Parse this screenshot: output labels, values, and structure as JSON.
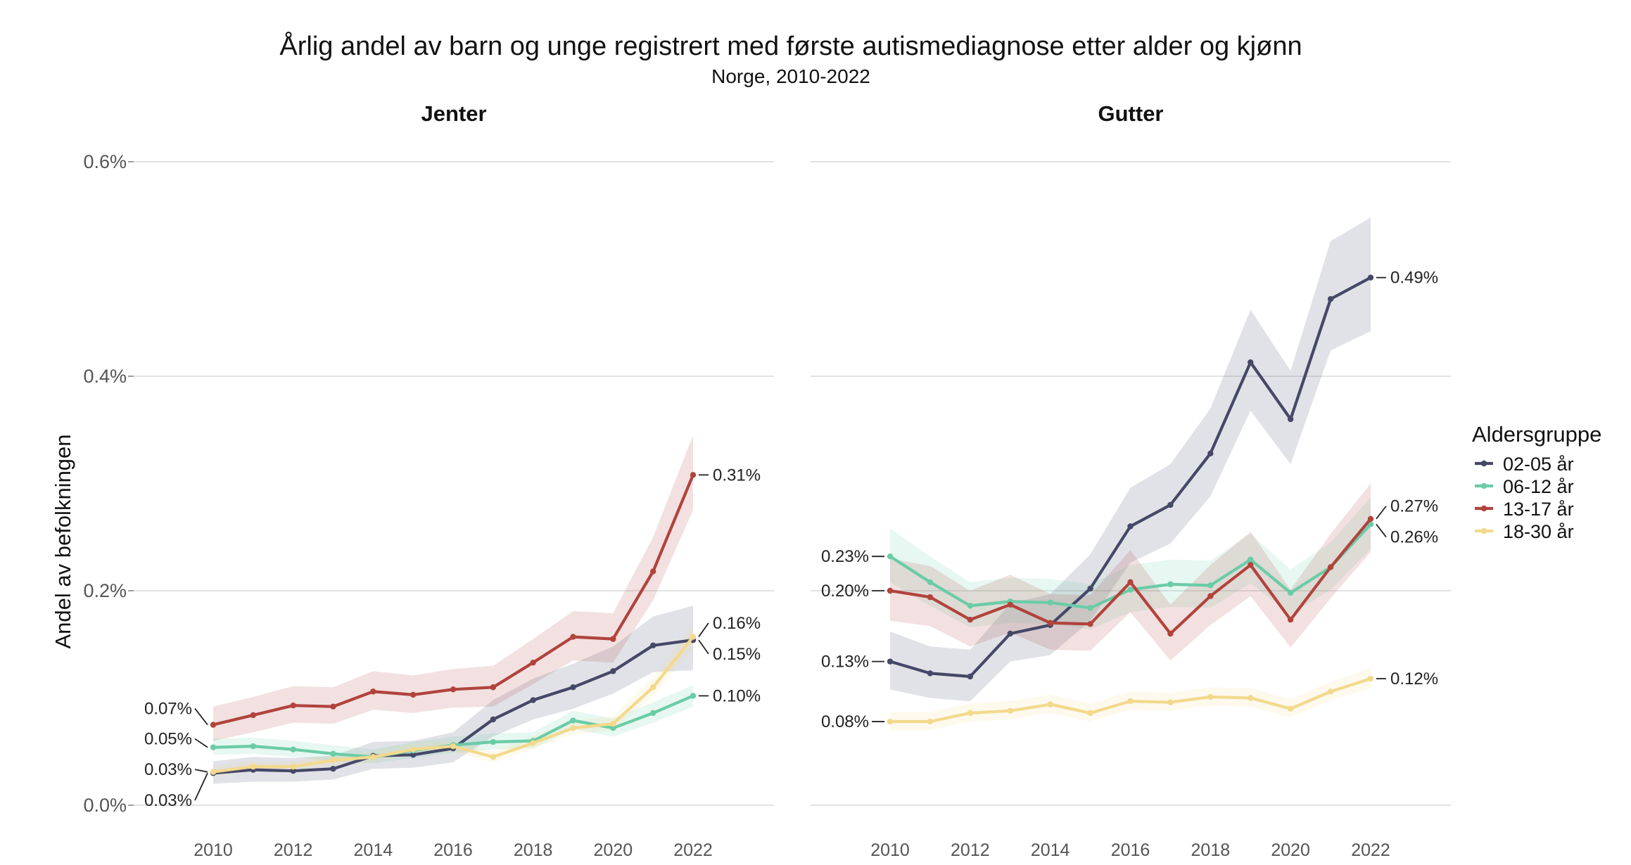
{
  "chart_data": {
    "type": "line",
    "title": "Årlig andel av barn og unge registrert med første autismediagnose etter alder og kjønn",
    "subtitle": "Norge, 2010-2022",
    "ylabel": "Andel av befolkningen",
    "ylim": [
      0,
      0.6
    ],
    "yticks": [
      0,
      0.2,
      0.4,
      0.6
    ],
    "ytick_labels": [
      "0.0%",
      "0.2%",
      "0.4%",
      "0.6%"
    ],
    "x": [
      2010,
      2011,
      2012,
      2013,
      2014,
      2015,
      2016,
      2017,
      2018,
      2019,
      2020,
      2021,
      2022
    ],
    "xticks": [
      2010,
      2012,
      2014,
      2016,
      2018,
      2020,
      2022
    ],
    "grid": true,
    "legend": {
      "title": "Aldersgruppe",
      "placement": "right",
      "items": [
        "02-05 år",
        "06-12 år",
        "13-17 år",
        "18-30 år"
      ]
    },
    "colors": {
      "02-05 år": "#454867",
      "06-12 år": "#6acca7",
      "13-17 år": "#b1433d",
      "18-30 år": "#f3d98c"
    },
    "panels": [
      {
        "title": "Jenter",
        "series": [
          {
            "name": "02-05 år",
            "values": [
              0.03,
              0.033,
              0.032,
              0.034,
              0.046,
              0.047,
              0.053,
              0.08,
              0.098,
              0.11,
              0.125,
              0.149,
              0.154
            ],
            "lower": [
              0.02,
              0.022,
              0.022,
              0.024,
              0.034,
              0.035,
              0.04,
              0.064,
              0.08,
              0.09,
              0.104,
              0.124,
              0.126
            ],
            "upper": [
              0.041,
              0.045,
              0.044,
              0.046,
              0.059,
              0.06,
              0.068,
              0.098,
              0.118,
              0.132,
              0.148,
              0.176,
              0.186
            ],
            "labels": {
              "start": "0.03%",
              "end": "0.15%"
            }
          },
          {
            "name": "06-12 år",
            "values": [
              0.054,
              0.055,
              0.052,
              0.048,
              0.045,
              0.051,
              0.056,
              0.059,
              0.06,
              0.079,
              0.072,
              0.086,
              0.102
            ],
            "lower": [
              0.047,
              0.048,
              0.045,
              0.041,
              0.039,
              0.044,
              0.049,
              0.052,
              0.053,
              0.071,
              0.064,
              0.077,
              0.092
            ],
            "upper": [
              0.062,
              0.063,
              0.06,
              0.056,
              0.052,
              0.059,
              0.064,
              0.067,
              0.068,
              0.088,
              0.081,
              0.096,
              0.112
            ],
            "labels": {
              "start": "0.05%",
              "end": "0.10%"
            }
          },
          {
            "name": "13-17 år",
            "values": [
              0.075,
              0.084,
              0.093,
              0.092,
              0.106,
              0.103,
              0.108,
              0.11,
              0.133,
              0.157,
              0.155,
              0.218,
              0.308
            ],
            "lower": [
              0.06,
              0.068,
              0.077,
              0.076,
              0.089,
              0.086,
              0.091,
              0.092,
              0.113,
              0.135,
              0.133,
              0.191,
              0.275
            ],
            "upper": [
              0.092,
              0.101,
              0.111,
              0.11,
              0.125,
              0.121,
              0.127,
              0.13,
              0.155,
              0.181,
              0.179,
              0.25,
              0.345
            ],
            "labels": {
              "start": "0.07%",
              "end": "0.31%"
            }
          },
          {
            "name": "18-30 år",
            "values": [
              0.031,
              0.036,
              0.036,
              0.042,
              0.045,
              0.052,
              0.055,
              0.045,
              0.058,
              0.072,
              0.076,
              0.11,
              0.157
            ],
            "lower": [
              0.027,
              0.032,
              0.032,
              0.037,
              0.04,
              0.047,
              0.05,
              0.04,
              0.053,
              0.066,
              0.07,
              0.102,
              0.147
            ],
            "upper": [
              0.036,
              0.041,
              0.041,
              0.047,
              0.05,
              0.058,
              0.061,
              0.05,
              0.064,
              0.079,
              0.083,
              0.119,
              0.168
            ],
            "labels": {
              "start": "0.03%",
              "end": "0.16%"
            }
          }
        ]
      },
      {
        "title": "Gutter",
        "series": [
          {
            "name": "02-05 år",
            "values": [
              0.134,
              0.123,
              0.12,
              0.16,
              0.168,
              0.202,
              0.26,
              0.28,
              0.328,
              0.413,
              0.36,
              0.472,
              0.492
            ],
            "lower": [
              0.108,
              0.1,
              0.097,
              0.134,
              0.14,
              0.172,
              0.226,
              0.244,
              0.288,
              0.368,
              0.318,
              0.424,
              0.442
            ],
            "upper": [
              0.162,
              0.148,
              0.145,
              0.188,
              0.197,
              0.234,
              0.296,
              0.318,
              0.37,
              0.462,
              0.405,
              0.526,
              0.548
            ],
            "labels": {
              "start": "0.13%",
              "end": "0.49%"
            }
          },
          {
            "name": "06-12 år",
            "values": [
              0.232,
              0.208,
              0.186,
              0.19,
              0.189,
              0.184,
              0.201,
              0.206,
              0.205,
              0.229,
              0.198,
              0.222,
              0.262
            ],
            "lower": [
              0.208,
              0.186,
              0.166,
              0.17,
              0.169,
              0.164,
              0.18,
              0.185,
              0.184,
              0.207,
              0.178,
              0.201,
              0.239
            ],
            "upper": [
              0.258,
              0.232,
              0.208,
              0.212,
              0.211,
              0.206,
              0.224,
              0.229,
              0.228,
              0.253,
              0.22,
              0.245,
              0.287
            ],
            "labels": {
              "start": "0.23%",
              "end": "0.26%"
            }
          },
          {
            "name": "13-17 år",
            "values": [
              0.2,
              0.194,
              0.173,
              0.187,
              0.17,
              0.169,
              0.208,
              0.16,
              0.195,
              0.224,
              0.173,
              0.222,
              0.267
            ],
            "lower": [
              0.172,
              0.167,
              0.148,
              0.161,
              0.145,
              0.144,
              0.18,
              0.135,
              0.168,
              0.195,
              0.147,
              0.193,
              0.236
            ],
            "upper": [
              0.23,
              0.223,
              0.2,
              0.215,
              0.197,
              0.196,
              0.238,
              0.187,
              0.224,
              0.255,
              0.201,
              0.253,
              0.3
            ],
            "labels": {
              "start": "0.20%",
              "end": "0.27%"
            }
          },
          {
            "name": "18-30 år",
            "values": [
              0.078,
              0.078,
              0.086,
              0.088,
              0.094,
              0.086,
              0.097,
              0.096,
              0.101,
              0.1,
              0.09,
              0.106,
              0.118
            ],
            "lower": [
              0.07,
              0.07,
              0.078,
              0.08,
              0.086,
              0.078,
              0.089,
              0.088,
              0.093,
              0.092,
              0.082,
              0.098,
              0.109
            ],
            "upper": [
              0.087,
              0.087,
              0.095,
              0.097,
              0.103,
              0.095,
              0.106,
              0.105,
              0.11,
              0.109,
              0.099,
              0.115,
              0.128
            ],
            "labels": {
              "start": "0.08%",
              "end": "0.12%"
            }
          }
        ]
      }
    ]
  }
}
